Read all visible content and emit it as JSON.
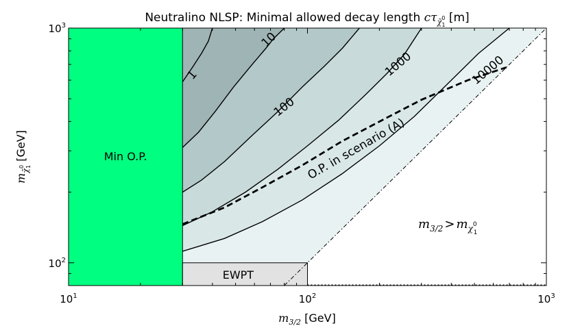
{
  "chart_data": {
    "type": "contour",
    "title": {
      "text": "Neutralino NLSP: Minimal allowed decay length ",
      "math": "cτ",
      "math_sub": "χ̃",
      "math_subsub": "1",
      "math_subsup": "0",
      "unit": " [m]"
    },
    "xlabel": {
      "math": "m",
      "sub": "3/2",
      "unit": " [GeV]"
    },
    "ylabel": {
      "math": "m",
      "sub": "χ̃",
      "subsub": "1",
      "subsup": "0",
      "unit": " [GeV]"
    },
    "x_scale": "log",
    "y_scale": "log",
    "xlim": [
      10,
      1000
    ],
    "ylim": [
      80,
      1000
    ],
    "x_ticks": [
      {
        "value": 10,
        "base": "10",
        "exp": "1"
      },
      {
        "value": 100,
        "base": "10",
        "exp": "2"
      },
      {
        "value": 1000,
        "base": "10",
        "exp": "3"
      }
    ],
    "y_ticks": [
      {
        "value": 100,
        "base": "10",
        "exp": "2"
      },
      {
        "value": 1000,
        "base": "10",
        "exp": "3"
      }
    ],
    "regions": [
      {
        "name": "Min O.P.",
        "label": "Min O.P.",
        "color": "#00ff80",
        "x_range": [
          10,
          30
        ],
        "y_range": [
          80,
          1000
        ]
      },
      {
        "name": "EWPT",
        "label": "EWPT",
        "color": "#e2e2e2",
        "x_range": [
          30,
          100
        ],
        "y_range": [
          80,
          100
        ]
      }
    ],
    "contour_bands": [
      {
        "level": "1",
        "color": "#9fb4b4"
      },
      {
        "level": "10",
        "color": "#b3c8c8"
      },
      {
        "level": "100",
        "color": "#c8dada"
      },
      {
        "level": "1000",
        "color": "#d9e7e7"
      },
      {
        "level": "10000",
        "color": "#e9f2f2"
      }
    ],
    "contours": [
      {
        "label": "1",
        "points": [
          [
            30,
            590
          ],
          [
            33,
            680
          ],
          [
            36,
            780
          ],
          [
            38.5,
            880
          ],
          [
            40,
            1000
          ]
        ]
      },
      {
        "label": "10",
        "points": [
          [
            30,
            310
          ],
          [
            35,
            360
          ],
          [
            41,
            440
          ],
          [
            49,
            560
          ],
          [
            58,
            690
          ],
          [
            67,
            820
          ],
          [
            72,
            900
          ],
          [
            80,
            1000
          ]
        ]
      },
      {
        "label": "100",
        "points": [
          [
            30,
            200
          ],
          [
            36,
            225
          ],
          [
            45,
            270
          ],
          [
            58,
            345
          ],
          [
            75,
            440
          ],
          [
            95,
            560
          ],
          [
            118,
            690
          ],
          [
            140,
            820
          ],
          [
            165,
            1000
          ]
        ]
      },
      {
        "label": "1000",
        "points": [
          [
            30,
            144
          ],
          [
            40,
            165
          ],
          [
            55,
            200
          ],
          [
            75,
            250
          ],
          [
            100,
            315
          ],
          [
            135,
            405
          ],
          [
            175,
            520
          ],
          [
            215,
            640
          ],
          [
            255,
            775
          ],
          [
            300,
            1000
          ]
        ]
      },
      {
        "label": "10000",
        "points": [
          [
            30,
            112
          ],
          [
            45,
            127
          ],
          [
            65,
            150
          ],
          [
            95,
            185
          ],
          [
            140,
            240
          ],
          [
            200,
            315
          ],
          [
            280,
            420
          ],
          [
            380,
            570
          ],
          [
            520,
            780
          ],
          [
            700,
            1000
          ]
        ]
      }
    ],
    "kinematic_line": {
      "points": [
        [
          80,
          80
        ],
        [
          1000,
          1000
        ]
      ],
      "label": "m3/2 > mχ̃10"
    },
    "scenario_line": {
      "label": "O.P. in scenario (A)",
      "points": [
        [
          30,
          146
        ],
        [
          45,
          172
        ],
        [
          65,
          210
        ],
        [
          95,
          260
        ],
        [
          140,
          330
        ],
        [
          210,
          410
        ],
        [
          300,
          495
        ],
        [
          470,
          600
        ],
        [
          680,
          680
        ]
      ]
    },
    "annotations": {
      "kinematic_region": {
        "math": "m",
        "sub": "3/2",
        "op": ">",
        "math2": "m",
        "sub2": "χ",
        "subsub2": "1",
        "subsup2": "0"
      }
    }
  }
}
